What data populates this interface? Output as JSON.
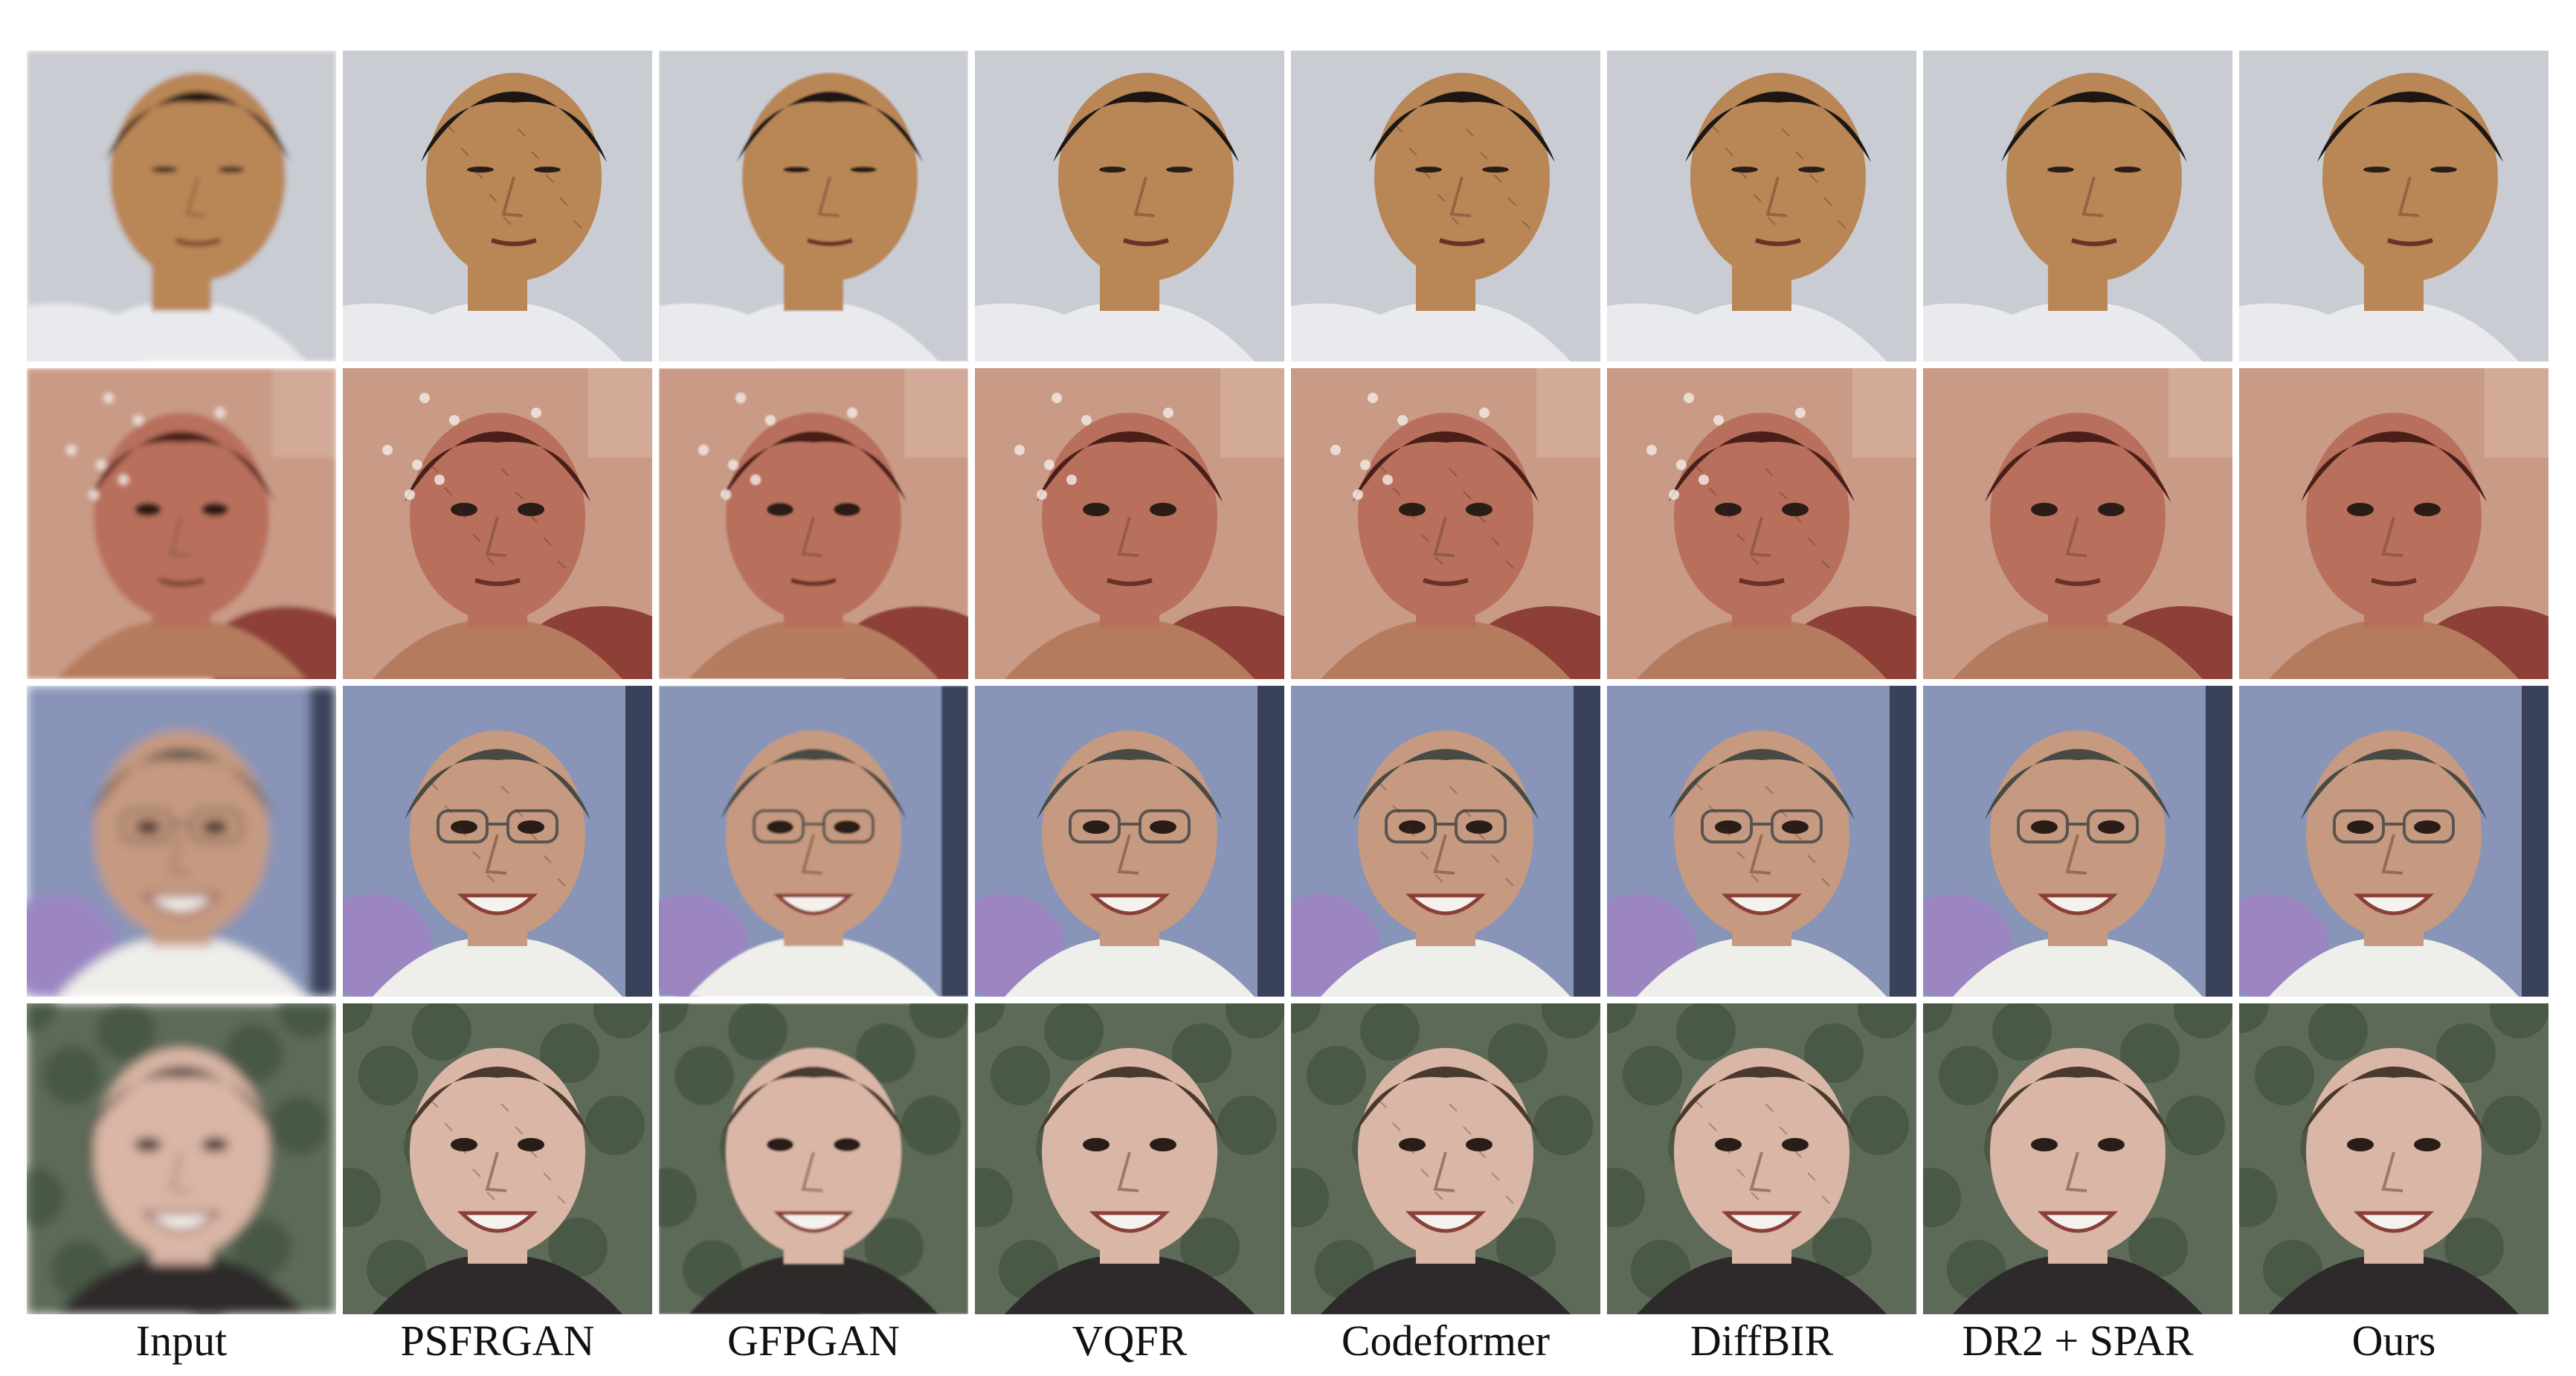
{
  "figure": {
    "columns": [
      {
        "label": "Input",
        "quality": "degraded"
      },
      {
        "label": "PSFRGAN",
        "quality": "restored-artifacts"
      },
      {
        "label": "GFPGAN",
        "quality": "restored-smooth"
      },
      {
        "label": "VQFR",
        "quality": "restored-sharp"
      },
      {
        "label": "Codeformer",
        "quality": "restored-texture"
      },
      {
        "label": "DiffBIR",
        "quality": "restored-artifacts"
      },
      {
        "label": "DR2 + SPAR",
        "quality": "restored-clean"
      },
      {
        "label": "Ours",
        "quality": "restored-clean"
      }
    ],
    "rows": [
      {
        "subject": "middle-aged man looking down",
        "background": "#c9ccd2",
        "skin": "#b98656",
        "hair": "#1c1714",
        "clothing": "#e8eaee",
        "accent": "#3a3d44"
      },
      {
        "subject": "young boy with scratched photo",
        "background": "#c99a86",
        "skin": "#b86f5c",
        "hair": "#4a1f19",
        "clothing": "#b57b5e",
        "accent": "#8e3f38"
      },
      {
        "subject": "smiling woman with glasses",
        "background": "#8894b8",
        "skin": "#c69a80",
        "hair": "#4a4a44",
        "clothing": "#eeeeea",
        "accent": "#9b86c2"
      },
      {
        "subject": "smiling man outdoors",
        "background": "#5d6a58",
        "skin": "#d9b6a6",
        "hair": "#4a3a2e",
        "clothing": "#2e2a2c",
        "accent": "#394a36"
      }
    ]
  }
}
